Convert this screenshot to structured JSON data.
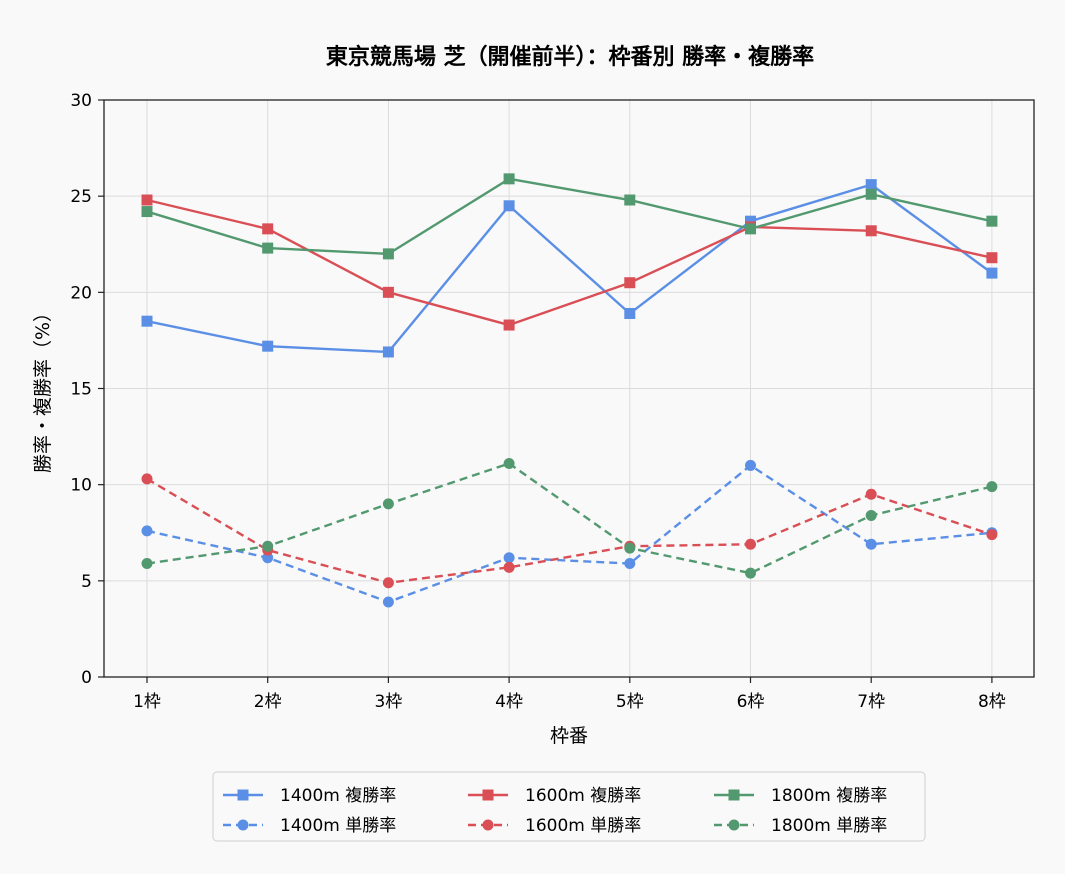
{
  "chart_data": {
    "type": "line",
    "title": "東京競馬場 芝（開催前半）：枠番別 勝率・複勝率",
    "xlabel": "枠番",
    "ylabel": "勝率・複勝率（%）",
    "categories": [
      "1枠",
      "2枠",
      "3枠",
      "4枠",
      "5枠",
      "6枠",
      "7枠",
      "8枠"
    ],
    "ylim": [
      0,
      30
    ],
    "yticks": [
      0,
      5,
      10,
      15,
      20,
      25,
      30
    ],
    "grid": true,
    "legend_position": "bottom",
    "legend_columns": 3,
    "series": [
      {
        "name": "1400m 複勝率",
        "color": "#5b8fe6",
        "style": "solid",
        "marker": "square",
        "values": [
          18.5,
          17.2,
          16.9,
          24.5,
          18.9,
          23.7,
          25.6,
          21.0
        ]
      },
      {
        "name": "1400m 単勝率",
        "color": "#5b8fe6",
        "style": "dashed",
        "marker": "circle",
        "values": [
          7.6,
          6.2,
          3.9,
          6.2,
          5.9,
          11.0,
          6.9,
          7.5
        ]
      },
      {
        "name": "1600m 複勝率",
        "color": "#d94f55",
        "style": "solid",
        "marker": "square",
        "values": [
          24.8,
          23.3,
          20.0,
          18.3,
          20.5,
          23.4,
          23.2,
          21.8
        ]
      },
      {
        "name": "1600m 単勝率",
        "color": "#d94f55",
        "style": "dashed",
        "marker": "circle",
        "values": [
          10.3,
          6.6,
          4.9,
          5.7,
          6.8,
          6.9,
          9.5,
          7.4
        ]
      },
      {
        "name": "1800m 複勝率",
        "color": "#539970",
        "style": "solid",
        "marker": "square",
        "values": [
          24.2,
          22.3,
          22.0,
          25.9,
          24.8,
          23.3,
          25.1,
          23.7
        ]
      },
      {
        "name": "1800m 単勝率",
        "color": "#539970",
        "style": "dashed",
        "marker": "circle",
        "values": [
          5.9,
          6.8,
          9.0,
          11.1,
          6.7,
          5.4,
          8.4,
          9.9
        ]
      }
    ]
  }
}
